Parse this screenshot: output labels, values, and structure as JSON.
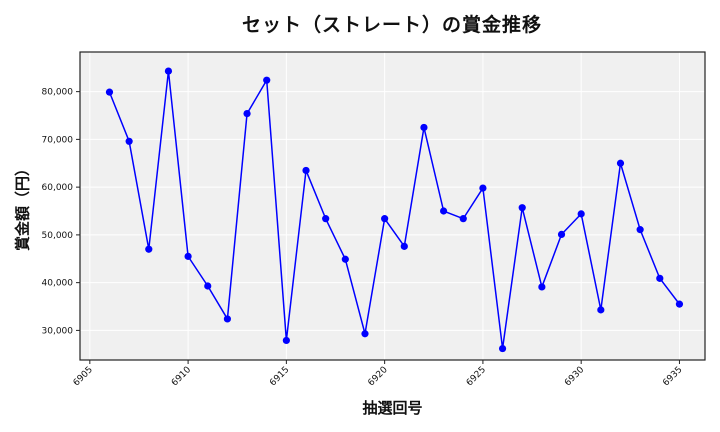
{
  "chart_data": {
    "type": "line",
    "title": "セット（ストレート）の賞金推移",
    "xlabel": "抽選回号",
    "ylabel": "賞金額（円）",
    "x": [
      6906,
      6907,
      6908,
      6909,
      6910,
      6911,
      6912,
      6913,
      6914,
      6915,
      6916,
      6917,
      6918,
      6919,
      6920,
      6921,
      6922,
      6923,
      6924,
      6925,
      6926,
      6927,
      6928,
      6929,
      6930,
      6931,
      6932,
      6933,
      6934,
      6935
    ],
    "series": [
      {
        "name": "賞金額",
        "values": [
          79900,
          69600,
          47000,
          84300,
          45500,
          39300,
          32400,
          75400,
          82400,
          27900,
          63500,
          53400,
          44900,
          29300,
          53400,
          47600,
          72500,
          55000,
          53400,
          59800,
          26200,
          55700,
          39100,
          50100,
          54400,
          34300,
          65000,
          51100,
          40900,
          35500
        ],
        "color": "#0000ff",
        "marker": "circle"
      }
    ],
    "xticks": [
      6905,
      6910,
      6915,
      6920,
      6925,
      6930,
      6935
    ],
    "xtick_labels": [
      "6905",
      "6910",
      "6915",
      "6920",
      "6925",
      "6930",
      "6935"
    ],
    "yticks": [
      30000,
      40000,
      50000,
      60000,
      70000,
      80000
    ],
    "ytick_labels": [
      "30,000",
      "40,000",
      "50,000",
      "60,000",
      "70,000",
      "80,000"
    ],
    "xlim": [
      6904.5,
      6936.3
    ],
    "ylim": [
      23800,
      88300
    ],
    "grid": true,
    "legend": null,
    "background": "#f0f0f0",
    "grid_color": "#ffffff"
  }
}
